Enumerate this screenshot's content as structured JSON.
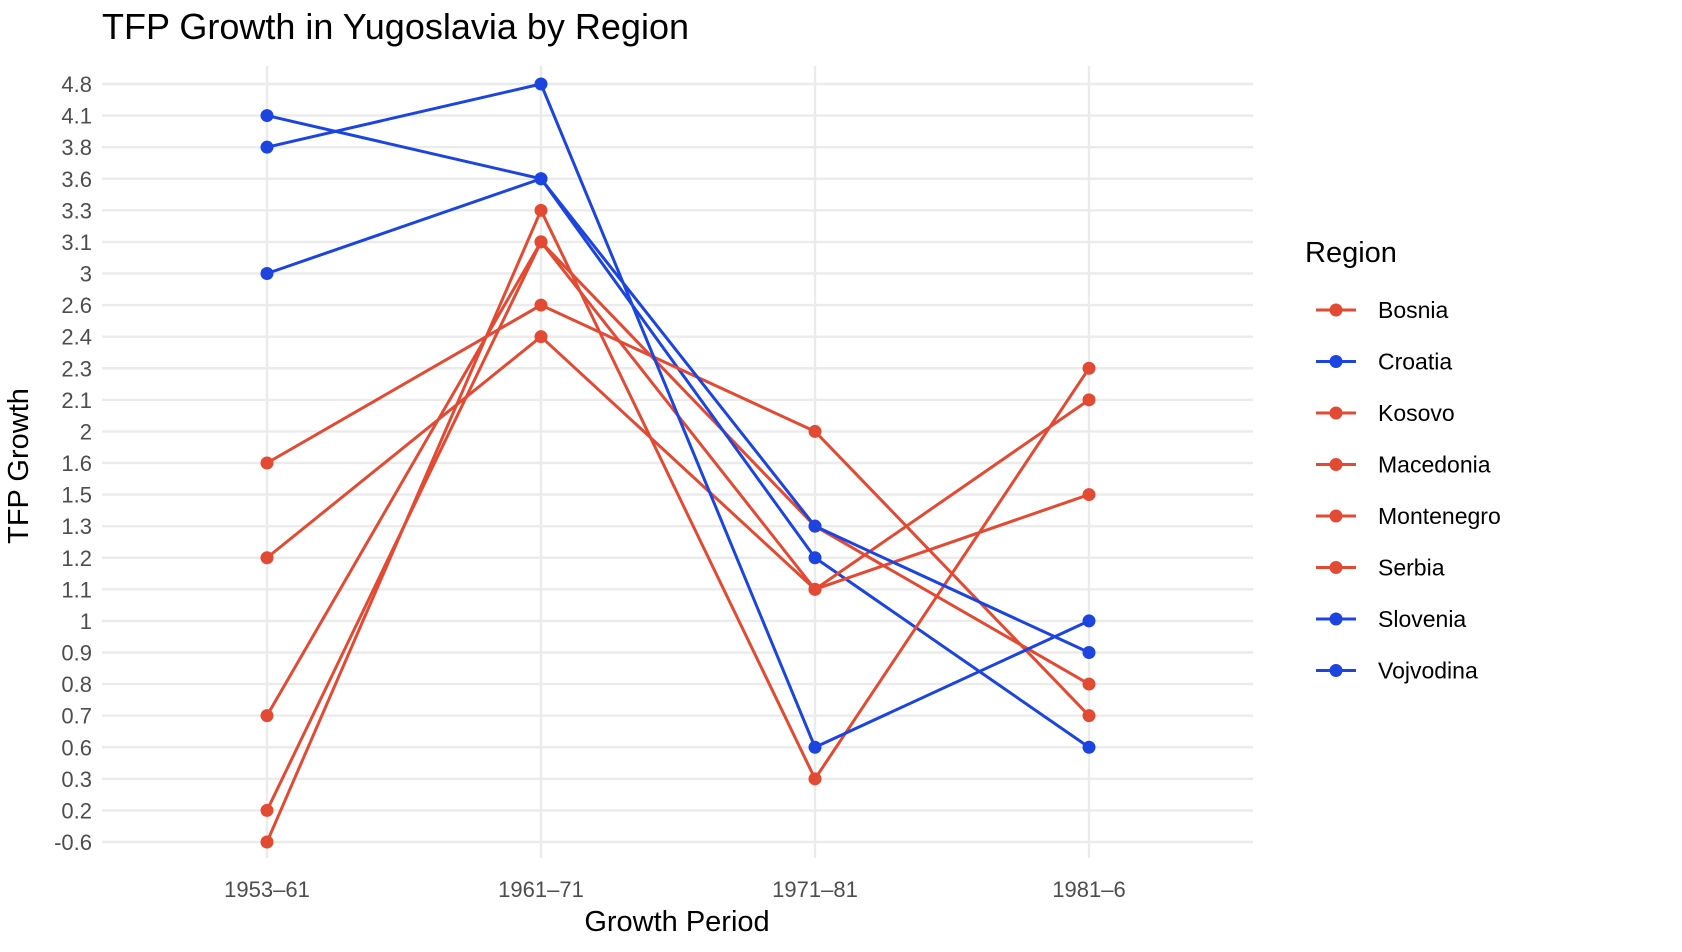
{
  "chart_data": {
    "type": "line",
    "title": "TFP Growth in Yugoslavia by Region",
    "xlabel": "Growth Period",
    "ylabel": "TFP Growth",
    "categories": [
      "1953–61",
      "1961–71",
      "1971–81",
      "1981–6"
    ],
    "y_tick_labels": [
      "-0.6",
      "0.2",
      "0.3",
      "0.6",
      "0.7",
      "0.8",
      "0.9",
      "1",
      "1.1",
      "1.2",
      "1.3",
      "1.5",
      "1.6",
      "2",
      "2.1",
      "2.3",
      "2.4",
      "2.6",
      "3",
      "3.1",
      "3.3",
      "3.6",
      "3.8",
      "4.1",
      "4.8"
    ],
    "y_scale": "categorical (each distinct value equally spaced)",
    "grid": true,
    "legend": {
      "title": "Region",
      "position": "right"
    },
    "series": [
      {
        "name": "Bosnia",
        "color": "#e34a33",
        "values": [
          0.2,
          3.1,
          1.3,
          0.8
        ]
      },
      {
        "name": "Croatia",
        "color": "#1c44e0",
        "values": [
          4.1,
          3.6,
          1.2,
          0.6
        ]
      },
      {
        "name": "Kosovo",
        "color": "#e34a33",
        "values": [
          -0.6,
          3.3,
          0.3,
          2.3
        ]
      },
      {
        "name": "Macedonia",
        "color": "#e34a33",
        "values": [
          0.7,
          3.1,
          1.1,
          2.1
        ]
      },
      {
        "name": "Montenegro",
        "color": "#e34a33",
        "values": [
          1.2,
          2.4,
          1.1,
          1.5
        ]
      },
      {
        "name": "Serbia",
        "color": "#e34a33",
        "values": [
          1.6,
          2.6,
          2.0,
          0.7
        ]
      },
      {
        "name": "Slovenia",
        "color": "#1c44e0",
        "values": [
          3.8,
          4.8,
          0.6,
          1.0
        ]
      },
      {
        "name": "Vojvodina",
        "color": "#1c44e0",
        "values": [
          3.0,
          3.6,
          1.3,
          0.9
        ]
      }
    ]
  }
}
